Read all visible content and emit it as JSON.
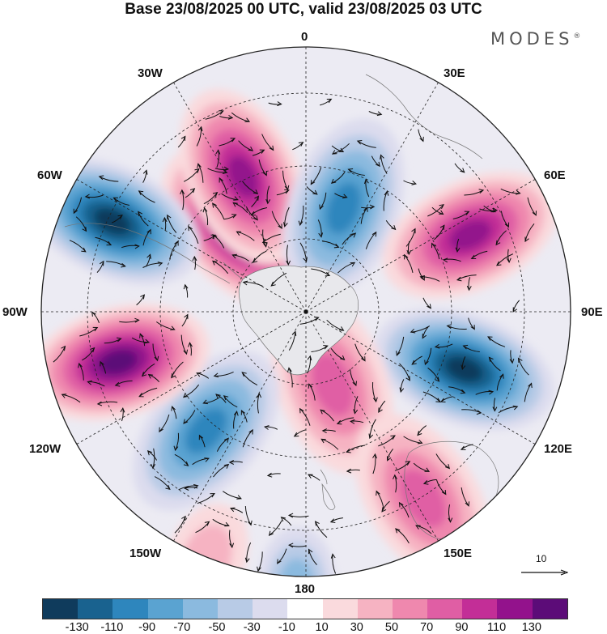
{
  "title": "Base 23/08/2025 00 UTC, valid 23/08/2025 03 UTC",
  "brand": "MODES",
  "brand_mark": "®",
  "longitude_labels": {
    "n0": "0",
    "e30": "30E",
    "e60": "60E",
    "e90": "90E",
    "e120": "120E",
    "e150": "150E",
    "s180": "180",
    "w150": "150W",
    "w120": "120W",
    "w90": "90W",
    "w60": "60W",
    "w30": "30W"
  },
  "vector_reference": "10",
  "colorbar": {
    "colors": [
      "#0f3b5c",
      "#19628f",
      "#2e86bd",
      "#5aa3d1",
      "#8bbadf",
      "#b8cbe6",
      "#dcdcee",
      "#ffffff",
      "#fadadd",
      "#f6b3c2",
      "#ef88ae",
      "#e05ea4",
      "#c32e97",
      "#93128c",
      "#5c0c78"
    ],
    "ticks": [
      "-130",
      "-110",
      "-90",
      "-70",
      "-50",
      "-30",
      "-10",
      "10",
      "30",
      "50",
      "70",
      "90",
      "110",
      "130"
    ]
  },
  "anomaly_centers": [
    {
      "lon": -40,
      "colat_deg": 17,
      "value": 120
    },
    {
      "lon": -25,
      "colat_deg": 23,
      "value": 100
    },
    {
      "lon": 20,
      "colat_deg": 17,
      "value": -90
    },
    {
      "lon": 65,
      "colat_deg": 28,
      "value": 115
    },
    {
      "lon": 110,
      "colat_deg": 26,
      "value": -125
    },
    {
      "lon": 160,
      "colat_deg": 12,
      "value": 70
    },
    {
      "lon": 148,
      "colat_deg": 34,
      "value": 70
    },
    {
      "lon": -140,
      "colat_deg": 24,
      "value": -80
    },
    {
      "lon": -105,
      "colat_deg": 30,
      "value": 125
    },
    {
      "lon": -65,
      "colat_deg": 33,
      "value": -135
    },
    {
      "lon": -178,
      "colat_deg": 42,
      "value": -45
    },
    {
      "lon": -158,
      "colat_deg": 41,
      "value": 30
    }
  ]
}
